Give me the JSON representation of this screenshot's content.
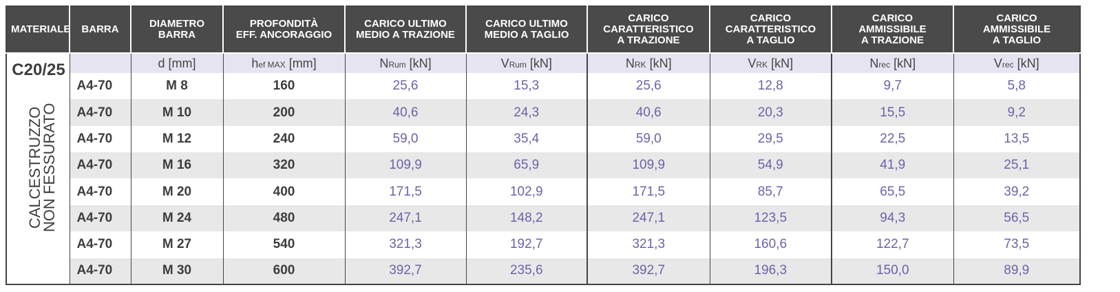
{
  "headers": [
    "MATERIALE",
    "BARRA",
    "DIAMETRO\nBARRA",
    "PROFONDITÀ\nEFF. ANCORAGGIO",
    "CARICO ULTIMO\nMEDIO A TRAZIONE",
    "CARICO ULTIMO\nMEDIO A TAGLIO",
    "CARICO\nCARATTERISTICO\nA TRAZIONE",
    "CARICO\nCARATTERISTICO\nA TAGLIO",
    "CARICO\nAMMISSIBILE\nA TRAZIONE",
    "CARICO\nAMMISSIBILE\nA TAGLIO"
  ],
  "units": {
    "d": {
      "main": "d [mm]"
    },
    "hef": {
      "pre": "h",
      "sub": "ef MAX",
      "post": " [mm]"
    },
    "nrum": {
      "pre": "N",
      "sub": "Rum",
      "post": " [kN]"
    },
    "vrum": {
      "pre": "V",
      "sub": "Rum",
      "post": " [kN]"
    },
    "nrk": {
      "pre": "N",
      "sub": "RK",
      "post": " [kN]"
    },
    "vrk": {
      "pre": "V",
      "sub": "RK",
      "post": " [kN]"
    },
    "nrec": {
      "pre": "N",
      "sub": "rec",
      "post": " [kN]"
    },
    "vrec": {
      "pre": "V",
      "sub": "rec",
      "post": " [kN]"
    }
  },
  "material": {
    "class": "C20/25",
    "type": "CALCESTRUZZO\nNON FESSURATO"
  },
  "rows": [
    {
      "barra": "A4-70",
      "dia": "M 8",
      "h": "160",
      "nrum": "25,6",
      "vrum": "15,3",
      "nrk": "25,6",
      "vrk": "12,8",
      "nrec": "9,7",
      "vrec": "5,8"
    },
    {
      "barra": "A4-70",
      "dia": "M 10",
      "h": "200",
      "nrum": "40,6",
      "vrum": "24,3",
      "nrk": "40,6",
      "vrk": "20,3",
      "nrec": "15,5",
      "vrec": "9,2"
    },
    {
      "barra": "A4-70",
      "dia": "M 12",
      "h": "240",
      "nrum": "59,0",
      "vrum": "35,4",
      "nrk": "59,0",
      "vrk": "29,5",
      "nrec": "22,5",
      "vrec": "13,5"
    },
    {
      "barra": "A4-70",
      "dia": "M 16",
      "h": "320",
      "nrum": "109,9",
      "vrum": "65,9",
      "nrk": "109,9",
      "vrk": "54,9",
      "nrec": "41,9",
      "vrec": "25,1"
    },
    {
      "barra": "A4-70",
      "dia": "M 20",
      "h": "400",
      "nrum": "171,5",
      "vrum": "102,9",
      "nrk": "171,5",
      "vrk": "85,7",
      "nrec": "65,5",
      "vrec": "39,2"
    },
    {
      "barra": "A4-70",
      "dia": "M 24",
      "h": "480",
      "nrum": "247,1",
      "vrum": "148,2",
      "nrk": "247,1",
      "vrk": "123,5",
      "nrec": "94,3",
      "vrec": "56,5"
    },
    {
      "barra": "A4-70",
      "dia": "M 27",
      "h": "540",
      "nrum": "321,3",
      "vrum": "192,7",
      "nrk": "321,3",
      "vrk": "160,6",
      "nrec": "122,7",
      "vrec": "73,5"
    },
    {
      "barra": "A4-70",
      "dia": "M 30",
      "h": "600",
      "nrum": "392,7",
      "vrum": "235,6",
      "nrk": "392,7",
      "vrk": "196,3",
      "nrec": "150,0",
      "vrec": "89,9"
    }
  ],
  "colors": {
    "header_bg": "#4a4a4a",
    "units_bg": "#e6e4f0",
    "value_text": "#6b63a8",
    "alt_row_bg": "#e8e8e8"
  }
}
